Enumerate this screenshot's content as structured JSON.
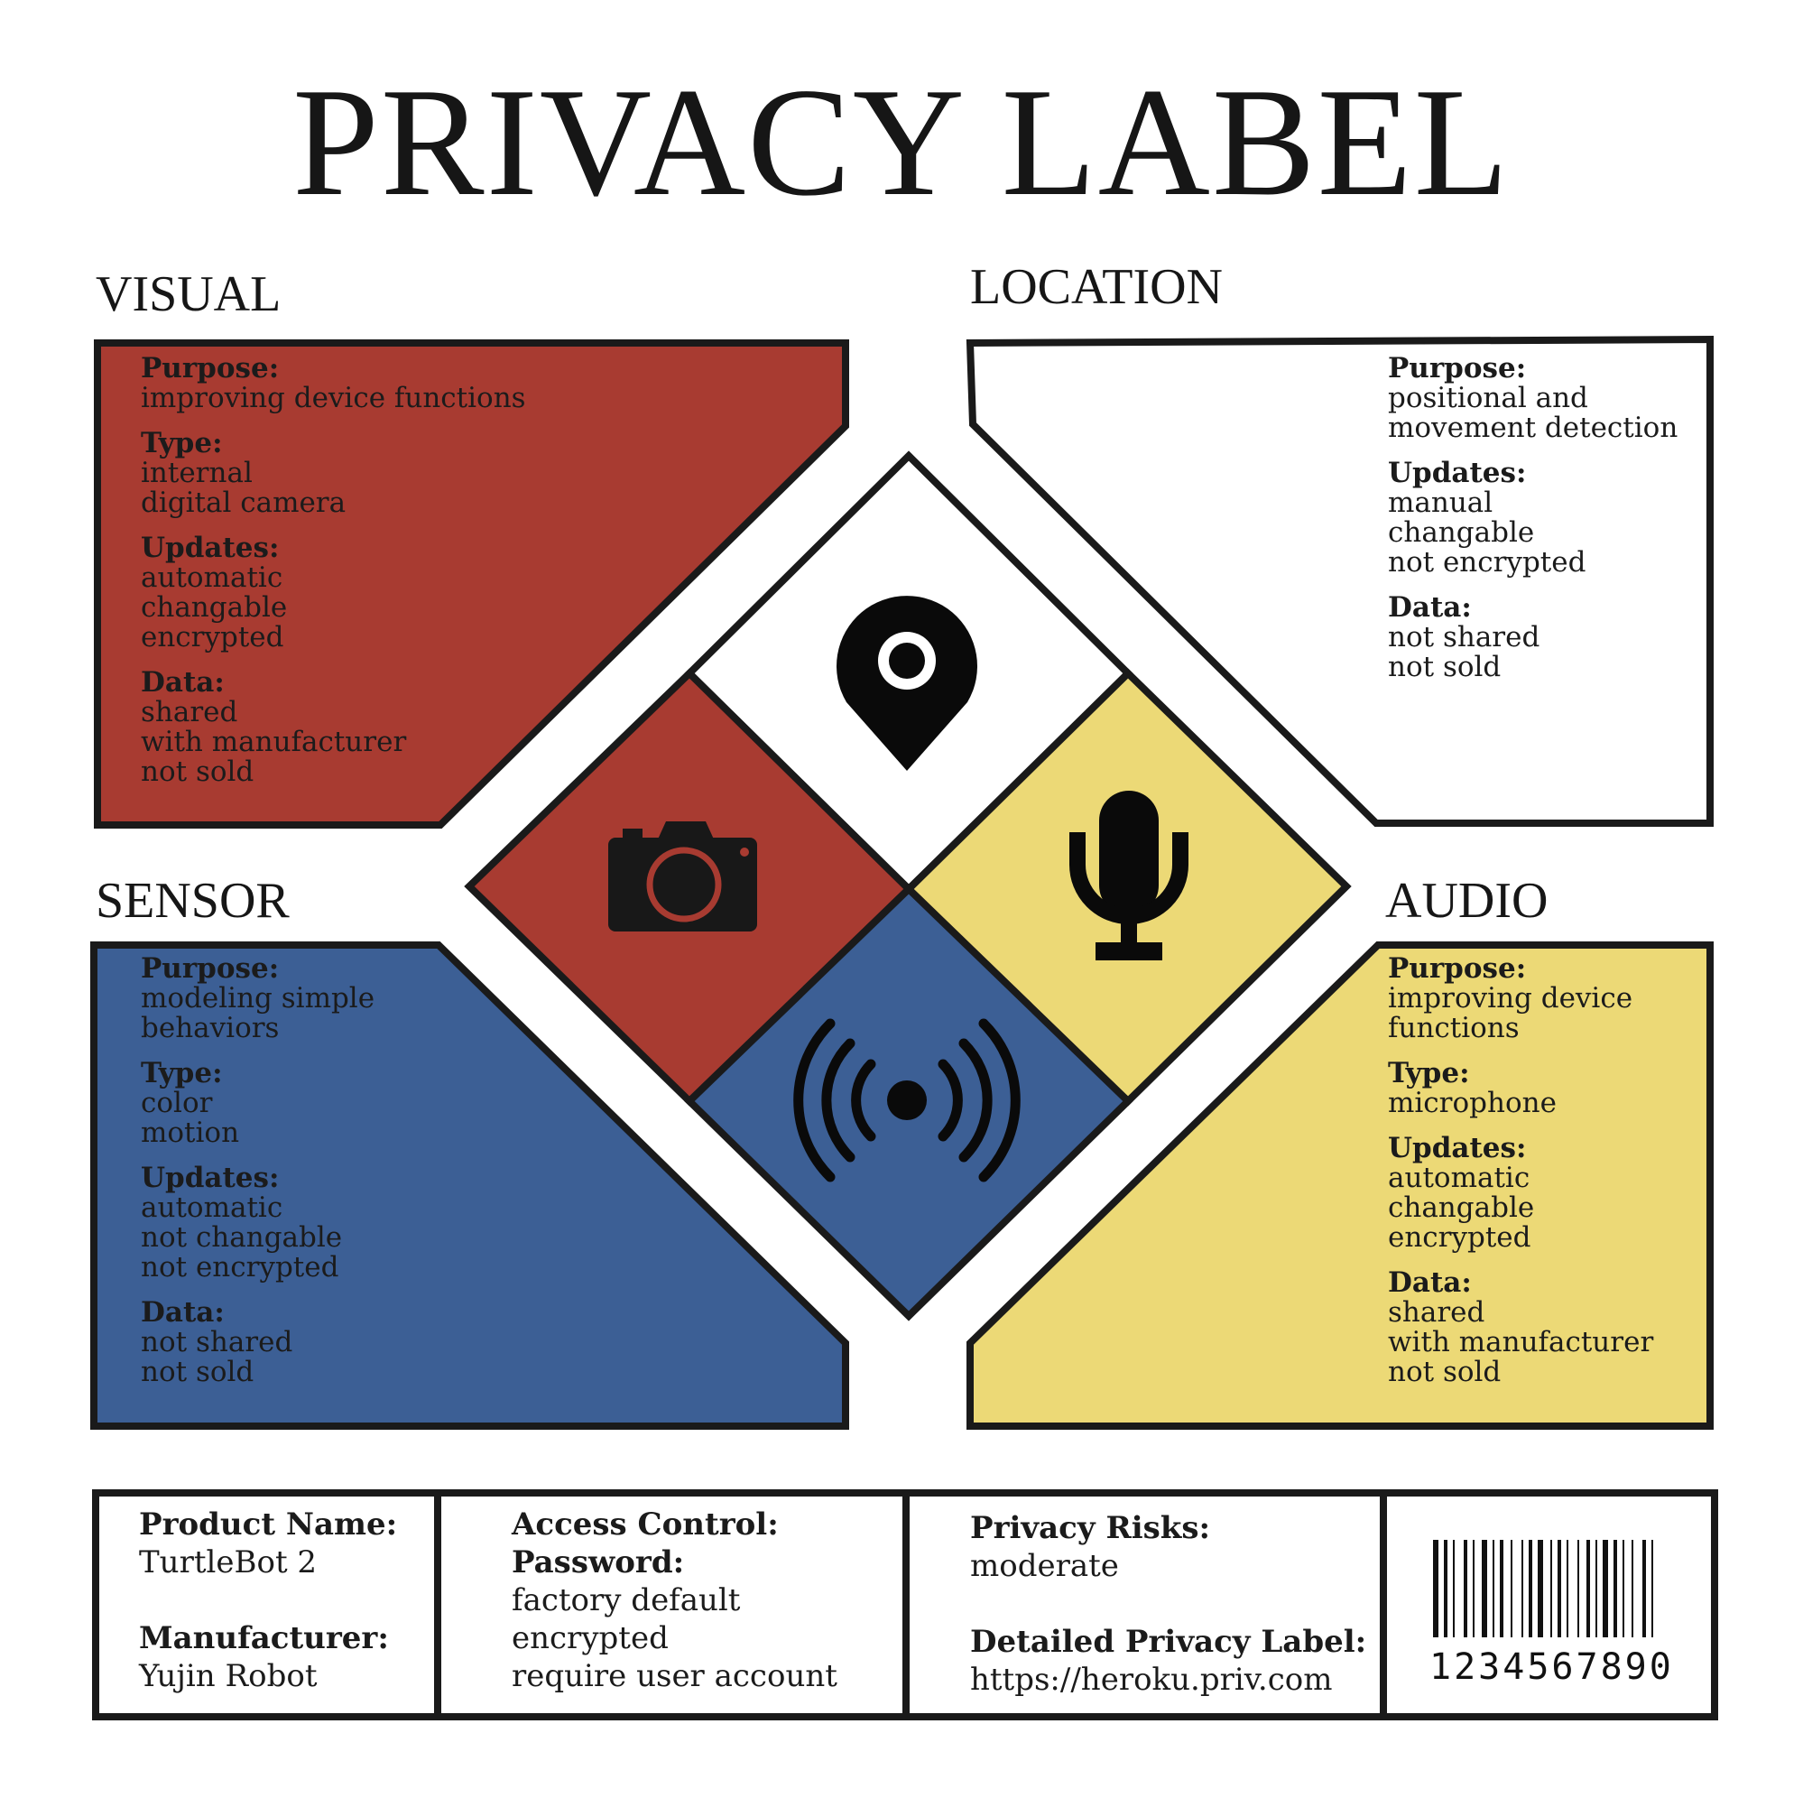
{
  "title": "PRIVACY LABEL",
  "colors": {
    "visual": "#a83b31",
    "location": "#ffffff",
    "sensor": "#3c5f95",
    "audio": "#ecd976",
    "outline": "#1a1a1a"
  },
  "sections": {
    "visual": {
      "heading": "VISUAL",
      "icon": "camera-icon",
      "blocks": [
        {
          "label": "Purpose:",
          "lines": [
            "improving device functions"
          ]
        },
        {
          "label": "Type:",
          "lines": [
            "internal",
            "digital camera"
          ]
        },
        {
          "label": "Updates:",
          "lines": [
            "automatic",
            "changable",
            "encrypted"
          ]
        },
        {
          "label": "Data:",
          "lines": [
            "shared",
            "with manufacturer",
            "not sold"
          ]
        }
      ]
    },
    "location": {
      "heading": "LOCATION",
      "icon": "location-pin-icon",
      "blocks": [
        {
          "label": "Purpose:",
          "lines": [
            "positional and",
            "movement detection"
          ]
        },
        {
          "label": "Updates:",
          "lines": [
            "manual",
            "changable",
            "not encrypted"
          ]
        },
        {
          "label": "Data:",
          "lines": [
            "not shared",
            "not sold"
          ]
        }
      ]
    },
    "sensor": {
      "heading": "SENSOR",
      "icon": "sensor-signal-icon",
      "blocks": [
        {
          "label": "Purpose:",
          "lines": [
            "modeling simple",
            "behaviors"
          ]
        },
        {
          "label": "Type:",
          "lines": [
            "color",
            "motion"
          ]
        },
        {
          "label": "Updates:",
          "lines": [
            "automatic",
            "not changable",
            "not encrypted"
          ]
        },
        {
          "label": "Data:",
          "lines": [
            "not shared",
            "not sold"
          ]
        }
      ]
    },
    "audio": {
      "heading": "AUDIO",
      "icon": "microphone-icon",
      "blocks": [
        {
          "label": "Purpose:",
          "lines": [
            "improving device",
            "functions"
          ]
        },
        {
          "label": "Type:",
          "lines": [
            "microphone"
          ]
        },
        {
          "label": "Updates:",
          "lines": [
            "automatic",
            "changable",
            "encrypted"
          ]
        },
        {
          "label": "Data:",
          "lines": [
            "shared",
            "with manufacturer",
            "not sold"
          ]
        }
      ]
    }
  },
  "footer": {
    "product_name_label": "Product Name:",
    "product_name": "TurtleBot 2",
    "manufacturer_label": "Manufacturer:",
    "manufacturer": "Yujin Robot",
    "access_control_label": "Access Control:",
    "password_label": "Password:",
    "password_lines": [
      "factory default",
      "encrypted",
      "require user account"
    ],
    "privacy_risks_label": "Privacy Risks:",
    "privacy_risks": "moderate",
    "detailed_label": "Detailed Privacy Label:",
    "detailed_url": "https://heroku.priv.com",
    "barcode_number": "1234567890"
  }
}
